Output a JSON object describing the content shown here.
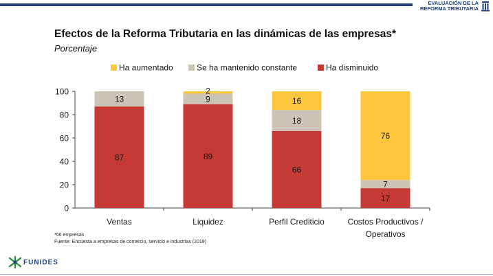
{
  "header": {
    "brand_line1": "EVALUACIÓN DE LA",
    "brand_line2": "REFORMA TRIBUTARIA",
    "brand_icon": "building-icon"
  },
  "chart_data": {
    "type": "stacked-bar",
    "title": "Efectos de la Reforma Tributaria en las dinámicas de las empresas*",
    "subtitle": "Porcentaje",
    "categories": [
      "Ventas",
      "Liquidez",
      "Perfil Crediticio",
      [
        "Costos Productivos /",
        "Operativos"
      ]
    ],
    "series": [
      {
        "name": "Ha disminuido",
        "color": "#c63a35",
        "values": [
          87,
          89,
          66,
          17
        ]
      },
      {
        "name": "Se ha mantenido constante",
        "color": "#ccc4b5",
        "values": [
          13,
          9,
          18,
          7
        ]
      },
      {
        "name": "Ha aumentado",
        "color": "#fec73d",
        "values": [
          0,
          2,
          16,
          76
        ]
      }
    ],
    "legend_order": [
      "Ha aumentado",
      "Se ha mantenido constante",
      "Ha disminuido"
    ],
    "ylim": [
      0,
      100
    ],
    "yticks": [
      0,
      20,
      40,
      60,
      80,
      100
    ],
    "legend_position": "top"
  },
  "notes": {
    "footnote": "*56 empresas",
    "source": "Fuente: Encuesta a empresas de comercio, servicio e industrias (2019)"
  },
  "footer": {
    "logo_text": "FUNIDES",
    "logo_icon": "funides-star-icon"
  }
}
